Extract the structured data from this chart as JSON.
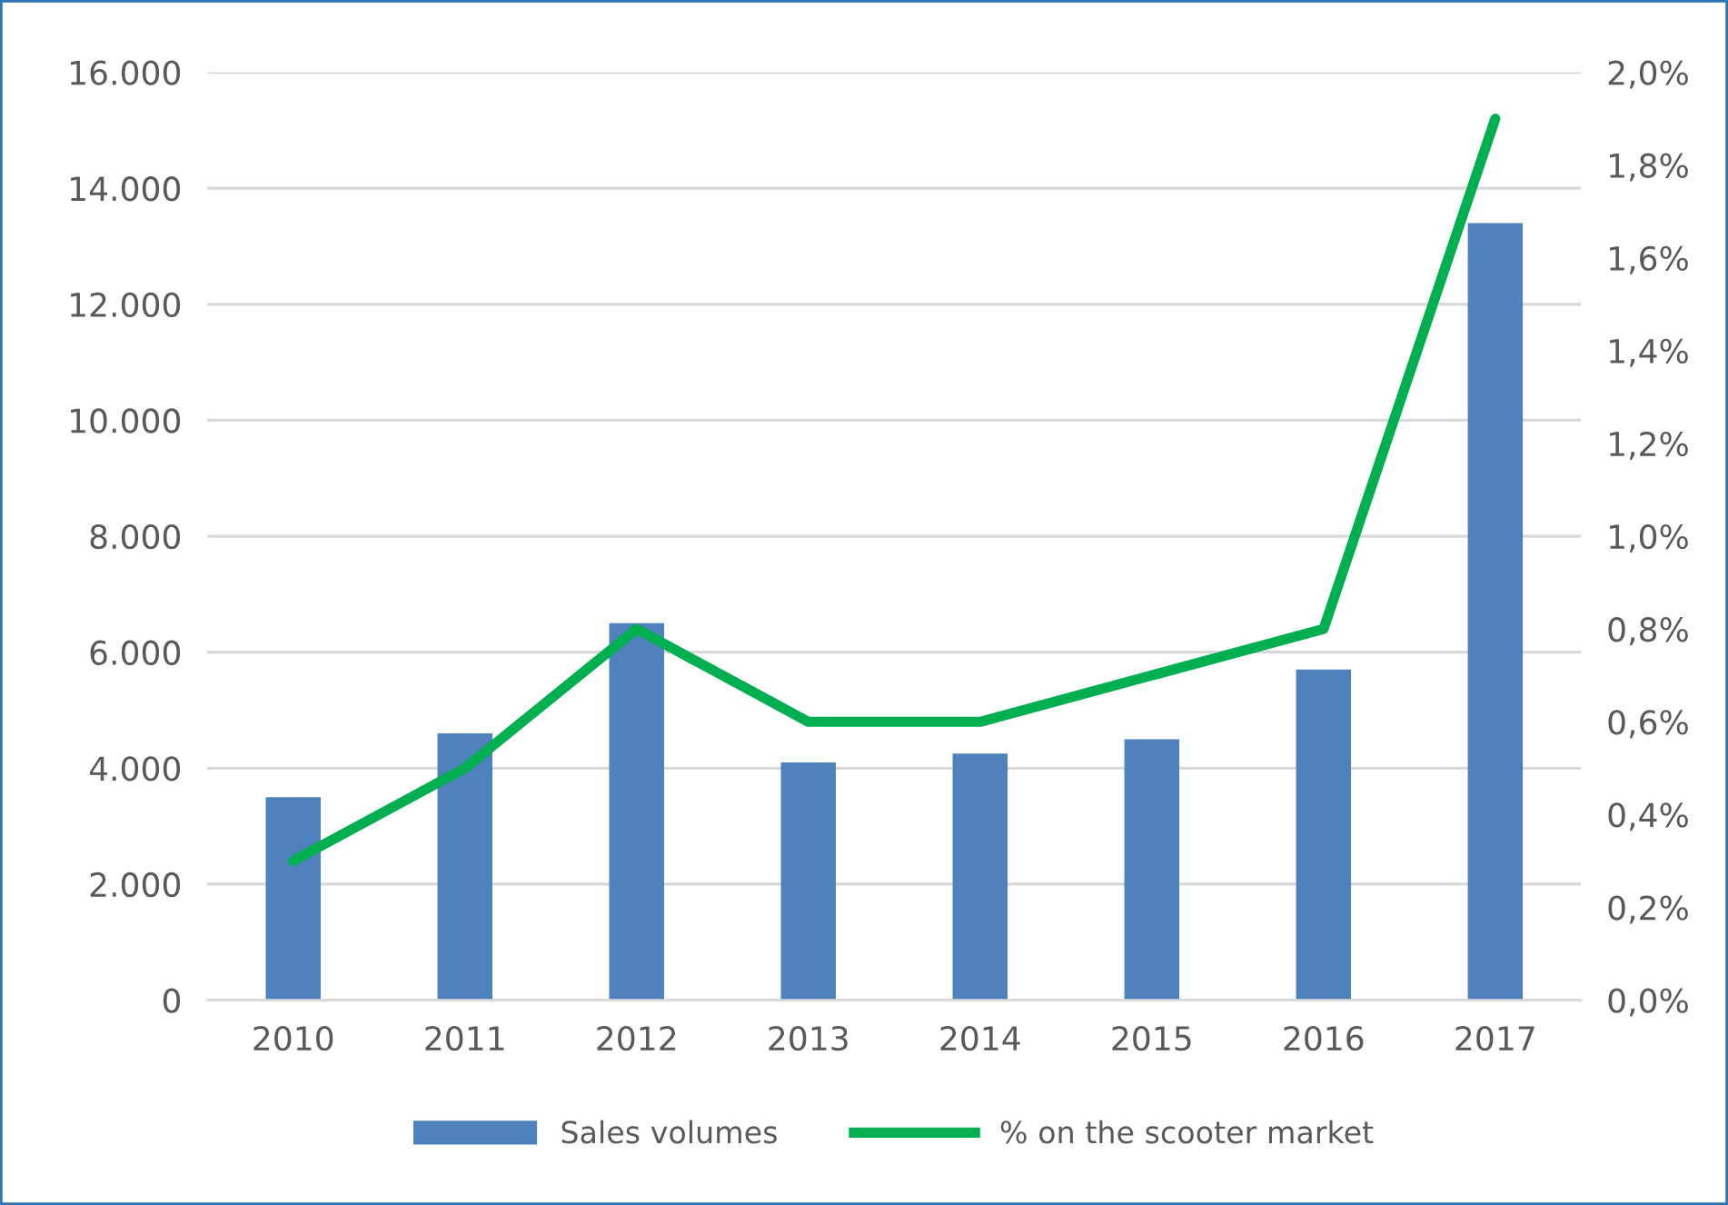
{
  "chart_data": {
    "type": "bar",
    "categories": [
      "2010",
      "2011",
      "2012",
      "2013",
      "2014",
      "2015",
      "2016",
      "2017"
    ],
    "series": [
      {
        "name": "Sales volumes",
        "color": "#4f81bd",
        "values": [
          3500,
          4600,
          6500,
          4100,
          4250,
          4500,
          5700,
          13400
        ]
      },
      {
        "name": "% on the scooter market",
        "type": "line",
        "axis": "y2",
        "color": "#00b050",
        "values": [
          0.3,
          0.5,
          0.8,
          0.6,
          0.6,
          0.7,
          0.8,
          1.9
        ]
      }
    ],
    "ylim": [
      0,
      16000
    ],
    "yticks": [
      {
        "value": 0,
        "label": "0"
      },
      {
        "value": 2000,
        "label": "2.000"
      },
      {
        "value": 4000,
        "label": "4.000"
      },
      {
        "value": 6000,
        "label": "6.000"
      },
      {
        "value": 8000,
        "label": "8.000"
      },
      {
        "value": 10000,
        "label": "10.000"
      },
      {
        "value": 12000,
        "label": "12.000"
      },
      {
        "value": 14000,
        "label": "14.000"
      },
      {
        "value": 16000,
        "label": "16.000"
      }
    ],
    "y2lim": [
      0,
      2.0
    ],
    "y2ticks": [
      {
        "value": 0,
        "label": "0,0%"
      },
      {
        "value": 0.2,
        "label": "0,2%"
      },
      {
        "value": 0.4,
        "label": "0,4%"
      },
      {
        "value": 0.6,
        "label": "0,6%"
      },
      {
        "value": 0.8,
        "label": "0,8%"
      },
      {
        "value": 1.0,
        "label": "1,0%"
      },
      {
        "value": 1.2,
        "label": "1,2%"
      },
      {
        "value": 1.4,
        "label": "1,4%"
      },
      {
        "value": 1.6,
        "label": "1,6%"
      },
      {
        "value": 1.8,
        "label": "1,8%"
      },
      {
        "value": 2.0,
        "label": "2,0%"
      }
    ],
    "grid": "y",
    "legend": "bottom",
    "marker": "none",
    "line_style": "solid"
  }
}
